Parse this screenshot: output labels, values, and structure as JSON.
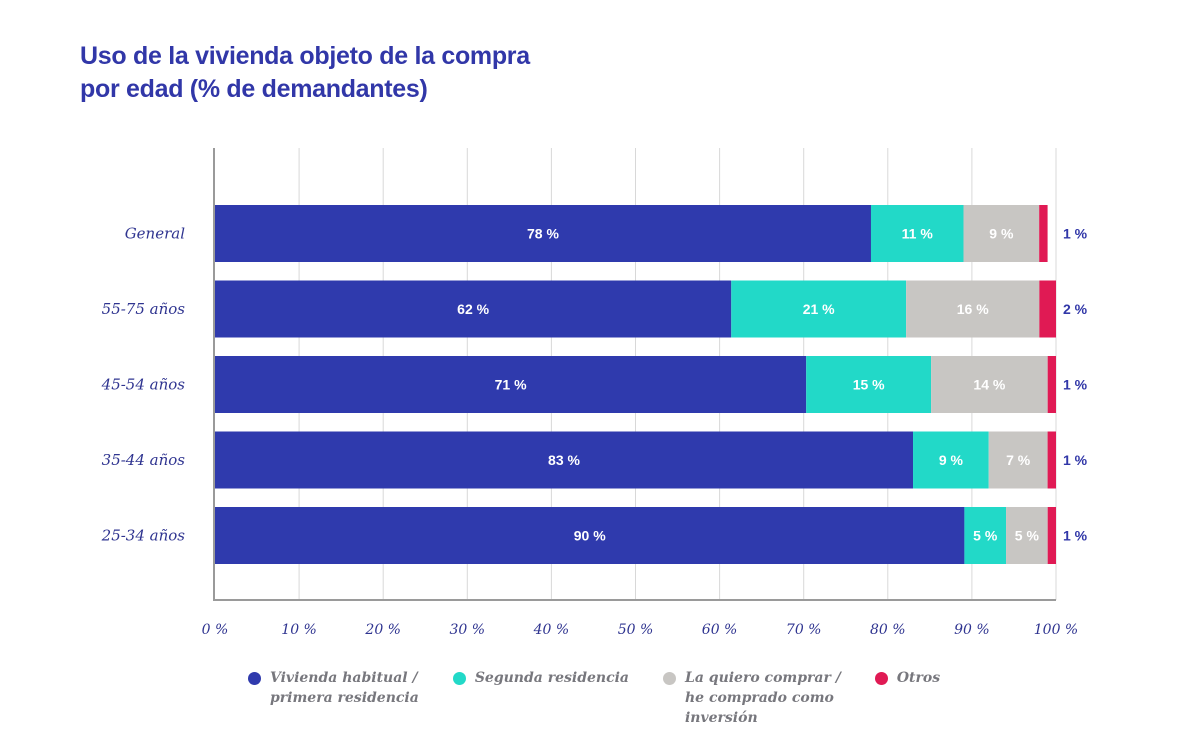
{
  "title_lines": [
    "Uso de la vivienda objeto de la compra",
    "por edad (% de demandantes)"
  ],
  "colors": {
    "title": "#3137a8",
    "vivienda": "#2f3aad",
    "segunda": "#22d9c8",
    "inversion": "#c8c6c3",
    "otros": "#e01a54",
    "axis": "#9a9a9a",
    "grid": "#d8d8d8"
  },
  "chart_data": {
    "type": "bar",
    "orientation": "horizontal",
    "stacked": true,
    "title": "Uso de la vivienda objeto de la compra por edad (% de demandantes)",
    "categories": [
      "General",
      "55-75 años",
      "45-54 años",
      "35-44 años",
      "25-34 años"
    ],
    "series": [
      {
        "name": "Vivienda habitual / primera residencia",
        "color": "#2f3aad",
        "values": [
          78,
          62,
          71,
          83,
          90
        ],
        "labels": [
          "78 %",
          "62 %",
          "71 %",
          "83 %",
          "90 %"
        ]
      },
      {
        "name": "Segunda residencia",
        "color": "#22d9c8",
        "values": [
          11,
          21,
          15,
          9,
          5
        ],
        "labels": [
          "11 %",
          "21 %",
          "15 %",
          "9 %",
          "5 %"
        ]
      },
      {
        "name": "La quiero comprar / he comprado como inversión",
        "color": "#c8c6c3",
        "values": [
          9,
          16,
          14,
          7,
          5
        ],
        "labels": [
          "9 %",
          "16 %",
          "14 %",
          "7 %",
          "5 %"
        ]
      },
      {
        "name": "Otros",
        "color": "#e01a54",
        "values": [
          1,
          2,
          1,
          1,
          1
        ],
        "labels": [
          "1 %",
          "2 %",
          "1 %",
          "1 %",
          "1 %"
        ]
      }
    ],
    "xlim": [
      0,
      100
    ],
    "xticks": [
      "0 %",
      "10 %",
      "20 %",
      "30 %",
      "40 %",
      "50 %",
      "60 %",
      "70 %",
      "80 %",
      "90 %",
      "100 %"
    ],
    "grid": true,
    "legend": {
      "position": "bottom",
      "items": [
        {
          "lines": [
            "Vivienda habitual /",
            "primera residencia"
          ],
          "color": "#2f3aad"
        },
        {
          "lines": [
            "Segunda residencia"
          ],
          "color": "#22d9c8"
        },
        {
          "lines": [
            "La quiero comprar /",
            "he comprado como",
            "inversión"
          ],
          "color": "#c8c6c3"
        },
        {
          "lines": [
            "Otros"
          ],
          "color": "#e01a54"
        }
      ]
    }
  }
}
